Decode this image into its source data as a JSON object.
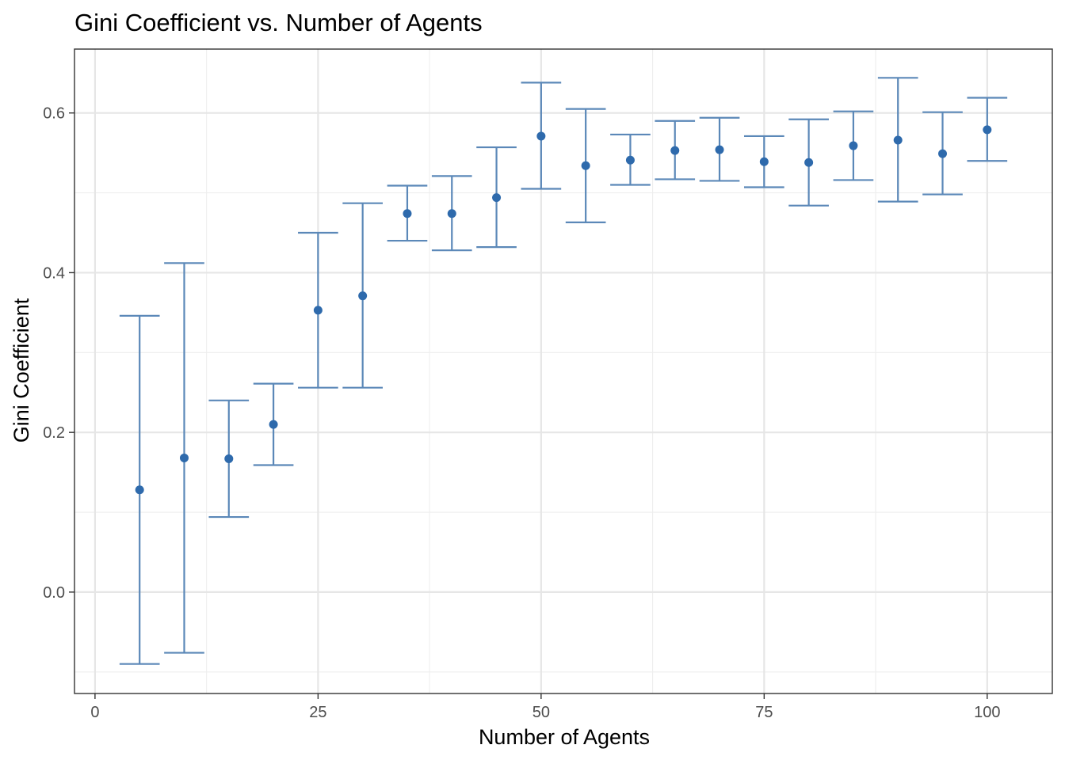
{
  "chart_data": {
    "type": "scatter",
    "title": "Gini Coefficient vs. Number of Agents",
    "xlabel": "Number of Agents",
    "ylabel": "Gini Coefficient",
    "xlim": [
      -2.3,
      107.3
    ],
    "ylim": [
      -0.127,
      0.68
    ],
    "x_ticks": [
      0,
      25,
      50,
      75,
      100
    ],
    "y_ticks": [
      0.0,
      0.2,
      0.4,
      0.6
    ],
    "x_tick_labels": [
      "0",
      "25",
      "50",
      "75",
      "100"
    ],
    "y_tick_labels": [
      "0.0",
      "0.2",
      "0.4",
      "0.6"
    ],
    "grid": true,
    "colors": {
      "errorbar": "#5b88b8",
      "point": "#2e6aac"
    },
    "points": [
      {
        "x": 5,
        "y": 0.128,
        "ymin": -0.09,
        "ymax": 0.346
      },
      {
        "x": 10,
        "y": 0.168,
        "ymin": -0.076,
        "ymax": 0.412
      },
      {
        "x": 15,
        "y": 0.167,
        "ymin": 0.094,
        "ymax": 0.24
      },
      {
        "x": 20,
        "y": 0.21,
        "ymin": 0.159,
        "ymax": 0.261
      },
      {
        "x": 25,
        "y": 0.353,
        "ymin": 0.256,
        "ymax": 0.45
      },
      {
        "x": 30,
        "y": 0.371,
        "ymin": 0.256,
        "ymax": 0.487
      },
      {
        "x": 35,
        "y": 0.474,
        "ymin": 0.44,
        "ymax": 0.509
      },
      {
        "x": 40,
        "y": 0.474,
        "ymin": 0.428,
        "ymax": 0.521
      },
      {
        "x": 45,
        "y": 0.494,
        "ymin": 0.432,
        "ymax": 0.557
      },
      {
        "x": 50,
        "y": 0.571,
        "ymin": 0.505,
        "ymax": 0.638
      },
      {
        "x": 55,
        "y": 0.534,
        "ymin": 0.463,
        "ymax": 0.605
      },
      {
        "x": 60,
        "y": 0.541,
        "ymin": 0.51,
        "ymax": 0.573
      },
      {
        "x": 65,
        "y": 0.553,
        "ymin": 0.517,
        "ymax": 0.59
      },
      {
        "x": 70,
        "y": 0.554,
        "ymin": 0.515,
        "ymax": 0.594
      },
      {
        "x": 75,
        "y": 0.539,
        "ymin": 0.507,
        "ymax": 0.571
      },
      {
        "x": 80,
        "y": 0.538,
        "ymin": 0.484,
        "ymax": 0.592
      },
      {
        "x": 85,
        "y": 0.559,
        "ymin": 0.516,
        "ymax": 0.602
      },
      {
        "x": 90,
        "y": 0.566,
        "ymin": 0.489,
        "ymax": 0.644
      },
      {
        "x": 95,
        "y": 0.549,
        "ymin": 0.498,
        "ymax": 0.601
      },
      {
        "x": 100,
        "y": 0.579,
        "ymin": 0.54,
        "ymax": 0.619
      }
    ]
  }
}
